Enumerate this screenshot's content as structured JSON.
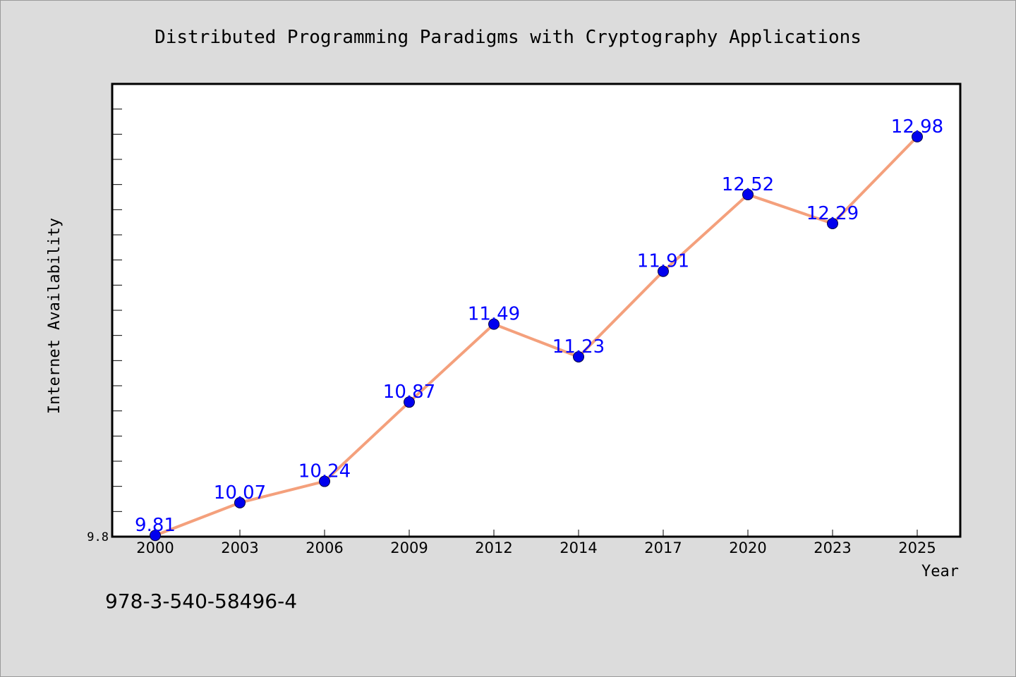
{
  "chart_data": {
    "type": "line",
    "title": "Distributed Programming Paradigms with Cryptography Applications",
    "xlabel": "Year",
    "ylabel": "Internet Availability",
    "categories": [
      "2000",
      "2003",
      "2006",
      "2009",
      "2012",
      "2014",
      "2017",
      "2020",
      "2023",
      "2025"
    ],
    "series": [
      {
        "values": [
          9.81,
          10.07,
          10.24,
          10.87,
          11.49,
          11.23,
          11.91,
          12.52,
          12.29,
          12.98
        ],
        "line_color": "#f4a07c",
        "marker_color": "#0000ee",
        "label_color": "#0000ff"
      }
    ],
    "data_labels": [
      "9.81",
      "10.07",
      "10.24",
      "10.87",
      "11.49",
      "11.23",
      "11.91",
      "12.52",
      "12.29",
      "12.98"
    ],
    "ylim": [
      9.8,
      13.4
    ],
    "y_tick_labels": [
      {
        "value": 9.8,
        "text": "9.8"
      }
    ],
    "y_minor_tick_step": 0.2,
    "grid": false,
    "legend": "none"
  },
  "footer": {
    "isbn": "978-3-540-58496-4"
  }
}
